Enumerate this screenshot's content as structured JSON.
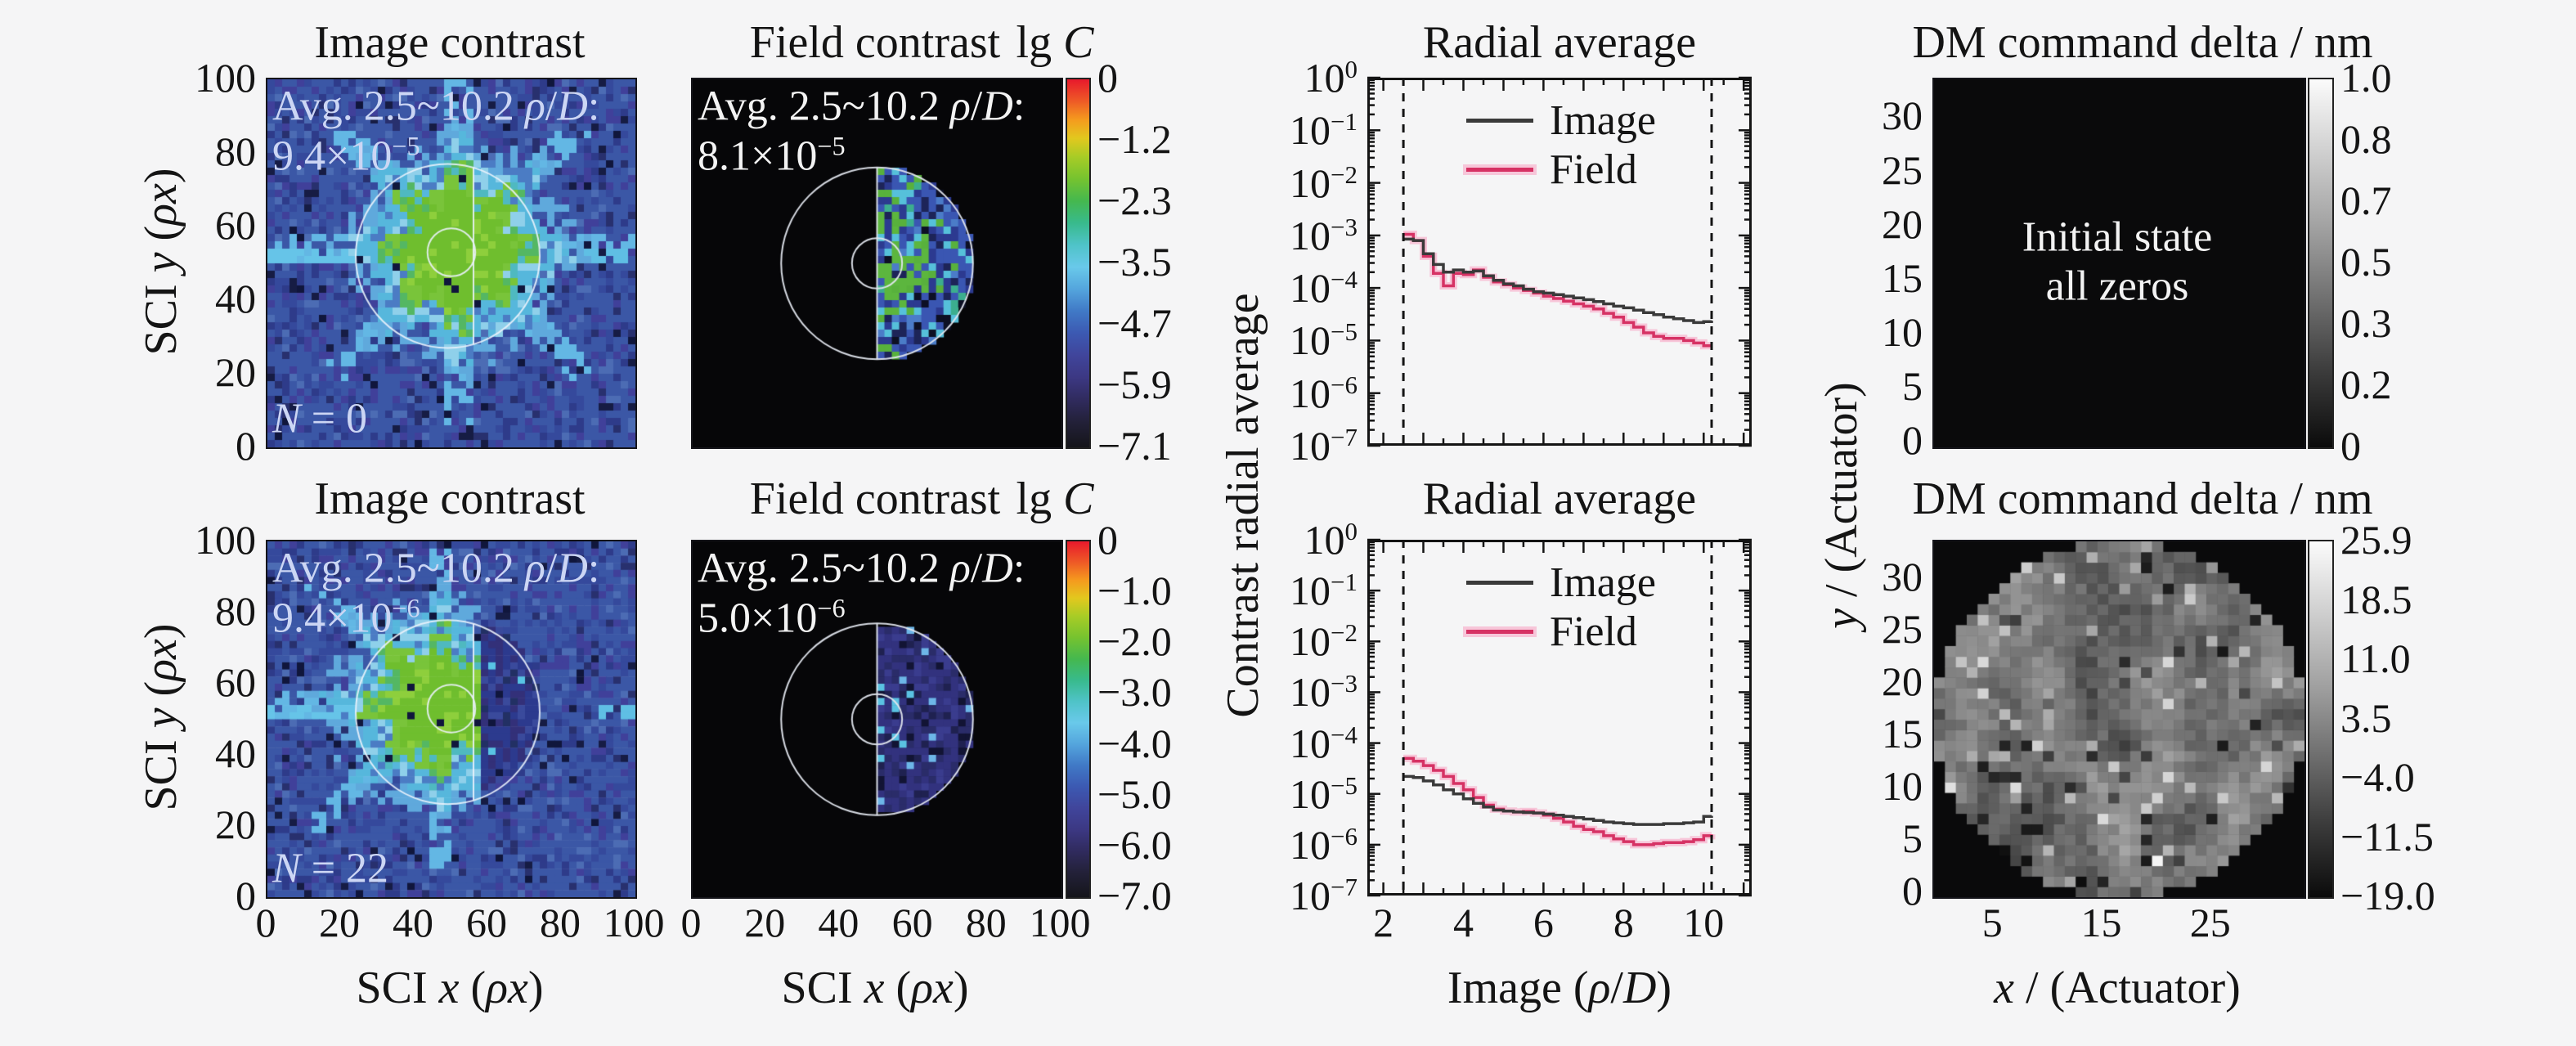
{
  "shared": {
    "contrast_radial_average": "Contrast radial average",
    "y_actuator": [
      {
        "t": "y",
        "i": true
      },
      {
        "t": " / (Actuator)"
      }
    ]
  },
  "colors": {
    "background": "#f5f5f6",
    "image_line": "#3a3a3a",
    "field_line": "#d63264",
    "field_halo": "#f7c6d9",
    "annotation_blue": "#ccd6f4",
    "annotation_white": "#f3f3f3",
    "rainbow_stops": [
      [
        0,
        "#e8192c"
      ],
      [
        0.06,
        "#ee5b26"
      ],
      [
        0.11,
        "#f59b1e"
      ],
      [
        0.16,
        "#e2c81e"
      ],
      [
        0.21,
        "#a8cc26"
      ],
      [
        0.27,
        "#76c32f"
      ],
      [
        0.33,
        "#45b84e"
      ],
      [
        0.39,
        "#38ba8c"
      ],
      [
        0.45,
        "#4fc3c8"
      ],
      [
        0.51,
        "#69c9ea"
      ],
      [
        0.57,
        "#54a5dd"
      ],
      [
        0.63,
        "#4079c6"
      ],
      [
        0.69,
        "#3c59b2"
      ],
      [
        0.75,
        "#40459b"
      ],
      [
        0.81,
        "#3c3883"
      ],
      [
        0.87,
        "#302b5e"
      ],
      [
        0.93,
        "#232139"
      ],
      [
        1,
        "#15151a"
      ]
    ],
    "gray_stops": [
      [
        0,
        "#fbfbfb"
      ],
      [
        0.2,
        "#cfcfcf"
      ],
      [
        0.4,
        "#a2a2a2"
      ],
      [
        0.6,
        "#6f6f6f"
      ],
      [
        0.8,
        "#3a3a3a"
      ],
      [
        1,
        "#0b0b0b"
      ]
    ]
  },
  "panels": {
    "image_contrast_top": {
      "title": "Image contrast",
      "ylabel": [
        {
          "t": "SCI "
        },
        {
          "t": "y",
          "i": true
        },
        {
          "t": " ("
        },
        {
          "t": "ρx",
          "i": true
        },
        {
          "t": ")"
        }
      ],
      "overlay1": [
        {
          "t": "Avg. 2.5~10.2 "
        },
        {
          "t": "ρ",
          "i": true
        },
        {
          "t": "/"
        },
        {
          "t": "D",
          "i": true
        },
        {
          "t": ":"
        }
      ],
      "overlay2": [
        {
          "t": "9.4×10"
        },
        {
          "t": "−5",
          "s": true
        }
      ],
      "n_label": [
        {
          "t": "N",
          "i": true
        },
        {
          "t": " = 0"
        }
      ],
      "y_ticks": [
        "100",
        "80",
        "60",
        "40",
        "20",
        "0"
      ],
      "heatmap": {
        "kind": "image",
        "variant": "full",
        "seed": 42
      }
    },
    "field_contrast_top": {
      "title": "Field contrast",
      "colorbar_label": [
        {
          "t": "lg "
        },
        {
          "t": "C",
          "i": true
        }
      ],
      "overlay1": [
        {
          "t": "Avg. 2.5~10.2 "
        },
        {
          "t": "ρ",
          "i": true
        },
        {
          "t": "/"
        },
        {
          "t": "D",
          "i": true
        },
        {
          "t": ":"
        }
      ],
      "overlay2": [
        {
          "t": "8.1×10"
        },
        {
          "t": "−5",
          "s": true
        }
      ],
      "colorbar_ticks": [
        "0",
        "−1.2",
        "−2.3",
        "−3.5",
        "−4.7",
        "−5.9",
        "−7.1"
      ],
      "heatmap": {
        "kind": "field",
        "variant": "top",
        "seed": 17
      }
    },
    "radial_top": {
      "title": "Radial average",
      "legend": [
        "Image",
        "Field"
      ],
      "y_exponents": [
        "0",
        "−1",
        "−2",
        "−3",
        "−4",
        "−5",
        "−6",
        "−7"
      ]
    },
    "dm_top": {
      "title": "DM command delta / nm",
      "overlay_line1": "Initial state",
      "overlay_line2": "all zeros",
      "y_ticks": [
        "0",
        "5",
        "10",
        "15",
        "20",
        "25",
        "30"
      ],
      "colorbar_ticks": [
        "1.0",
        "0.8",
        "0.7",
        "0.5",
        "0.3",
        "0.2",
        "0"
      ],
      "heatmap": {
        "kind": "dm-zeros",
        "seed": 1
      }
    },
    "image_contrast_bottom": {
      "title": "Image contrast",
      "ylabel": [
        {
          "t": "SCI "
        },
        {
          "t": "y",
          "i": true
        },
        {
          "t": " ("
        },
        {
          "t": "ρx",
          "i": true
        },
        {
          "t": ")"
        }
      ],
      "xlabel": [
        {
          "t": "SCI "
        },
        {
          "t": "x",
          "i": true
        },
        {
          "t": " ("
        },
        {
          "t": "ρx",
          "i": true
        },
        {
          "t": ")"
        }
      ],
      "overlay1": [
        {
          "t": "Avg. 2.5~10.2 "
        },
        {
          "t": "ρ",
          "i": true
        },
        {
          "t": "/"
        },
        {
          "t": "D",
          "i": true
        },
        {
          "t": ":"
        }
      ],
      "overlay2": [
        {
          "t": "9.4×10"
        },
        {
          "t": "−6",
          "s": true
        }
      ],
      "n_label": [
        {
          "t": "N",
          "i": true
        },
        {
          "t": " = 22"
        }
      ],
      "y_ticks": [
        "100",
        "80",
        "60",
        "40",
        "20",
        "0"
      ],
      "x_ticks": [
        "0",
        "20",
        "40",
        "60",
        "80",
        "100"
      ],
      "heatmap": {
        "kind": "image",
        "variant": "half",
        "seed": 7
      }
    },
    "field_contrast_bottom": {
      "title": "Field contrast",
      "colorbar_label": [
        {
          "t": "lg "
        },
        {
          "t": "C",
          "i": true
        }
      ],
      "xlabel": [
        {
          "t": "SCI "
        },
        {
          "t": "x",
          "i": true
        },
        {
          "t": " ("
        },
        {
          "t": "ρx",
          "i": true
        },
        {
          "t": ")"
        }
      ],
      "overlay1": [
        {
          "t": "Avg. 2.5~10.2 "
        },
        {
          "t": "ρ",
          "i": true
        },
        {
          "t": "/"
        },
        {
          "t": "D",
          "i": true
        },
        {
          "t": ":"
        }
      ],
      "overlay2": [
        {
          "t": "5.0×10"
        },
        {
          "t": "−6",
          "s": true
        }
      ],
      "colorbar_ticks": [
        "0",
        "−1.0",
        "−2.0",
        "−3.0",
        "−4.0",
        "−5.0",
        "−6.0",
        "−7.0"
      ],
      "x_ticks": [
        "0",
        "20",
        "40",
        "60",
        "80",
        "100"
      ],
      "heatmap": {
        "kind": "field",
        "variant": "bottom",
        "seed": 23
      }
    },
    "radial_bottom": {
      "title": "Radial average",
      "legend": [
        "Image",
        "Field"
      ],
      "y_exponents": [
        "0",
        "−1",
        "−2",
        "−3",
        "−4",
        "−5",
        "−6",
        "−7"
      ],
      "xlabel": [
        {
          "t": "Image  ("
        },
        {
          "t": "ρ",
          "i": true
        },
        {
          "t": "/"
        },
        {
          "t": "D",
          "i": true
        },
        {
          "t": ")"
        }
      ],
      "x_ticks": [
        "2",
        "4",
        "6",
        "8",
        "10"
      ]
    },
    "dm_bottom": {
      "title": "DM command delta / nm",
      "xlabel": [
        {
          "t": "x",
          "i": true
        },
        {
          "t": " / (Actuator)"
        }
      ],
      "x_ticks": [
        "5",
        "15",
        "25"
      ],
      "y_ticks": [
        "0",
        "5",
        "10",
        "15",
        "20",
        "25",
        "30"
      ],
      "colorbar_ticks": [
        "25.9",
        "18.5",
        "11.0",
        "3.5",
        "−4.0",
        "−11.5",
        "−19.0"
      ],
      "heatmap": {
        "kind": "dm-speckle",
        "seed": 5
      }
    }
  },
  "chart_data": [
    {
      "type": "line",
      "style": "step",
      "title": "Radial average",
      "xlabel": "",
      "ylabel": "Contrast radial average",
      "legend": [
        "Image",
        "Field"
      ],
      "legend_position": "upper center",
      "grid": false,
      "xlim": [
        1.6,
        11.2
      ],
      "ylim": [
        1e-07,
        1
      ],
      "yscale": "log",
      "dashed_x": [
        2.5,
        10.2
      ],
      "x": [
        2.5,
        2.75,
        3.0,
        3.25,
        3.5,
        3.75,
        4.0,
        4.25,
        4.5,
        4.75,
        5.0,
        5.25,
        5.5,
        5.75,
        6.0,
        6.25,
        6.5,
        6.75,
        7.0,
        7.25,
        7.5,
        7.75,
        8.0,
        8.25,
        8.5,
        8.75,
        9.0,
        9.25,
        9.5,
        9.75,
        10.0,
        10.2
      ],
      "series": [
        {
          "name": "Image",
          "color": "#3a3a3a",
          "values": [
            0.00085,
            0.0008,
            0.00045,
            0.00028,
            0.0002,
            0.00022,
            0.0002,
            0.00021,
            0.00017,
            0.00014,
            0.00012,
            0.00011,
            9.5e-05,
            8.5e-05,
            8e-05,
            7.5e-05,
            7e-05,
            6.5e-05,
            6e-05,
            5.5e-05,
            5e-05,
            4.5e-05,
            4.2e-05,
            3.8e-05,
            3.4e-05,
            3.1e-05,
            2.8e-05,
            2.6e-05,
            2.4e-05,
            2.2e-05,
            2.3e-05,
            2.4e-05
          ]
        },
        {
          "name": "Field",
          "color": "#d63264",
          "halo": "#f7c6d9",
          "values": [
            0.00105,
            0.0008,
            0.0004,
            0.00019,
            0.00011,
            0.00019,
            0.00018,
            0.00022,
            0.00016,
            0.00013,
            0.000115,
            0.0001,
            9e-05,
            8e-05,
            7e-05,
            6.3e-05,
            5.6e-05,
            5e-05,
            4.5e-05,
            4e-05,
            3.3e-05,
            2.8e-05,
            2.2e-05,
            1.8e-05,
            1.4e-05,
            1.2e-05,
            1.1e-05,
            1.1e-05,
            1e-05,
            9e-06,
            8e-06,
            8e-06
          ]
        }
      ]
    },
    {
      "type": "line",
      "style": "step",
      "title": "Radial average",
      "xlabel": "Image  (ρ/D)",
      "ylabel": "Contrast radial average",
      "legend": [
        "Image",
        "Field"
      ],
      "legend_position": "upper center",
      "grid": false,
      "xlim": [
        1.6,
        11.2
      ],
      "ylim": [
        1e-07,
        1
      ],
      "yscale": "log",
      "dashed_x": [
        2.5,
        10.2
      ],
      "x": [
        2.5,
        2.75,
        3.0,
        3.25,
        3.5,
        3.75,
        4.0,
        4.25,
        4.5,
        4.75,
        5.0,
        5.25,
        5.5,
        5.75,
        6.0,
        6.25,
        6.5,
        6.75,
        7.0,
        7.25,
        7.5,
        7.75,
        8.0,
        8.25,
        8.5,
        8.75,
        9.0,
        9.25,
        9.5,
        9.75,
        10.0,
        10.2
      ],
      "series": [
        {
          "name": "Image",
          "color": "#3a3a3a",
          "values": [
            2.2e-05,
            2.1e-05,
            1.8e-05,
            1.5e-05,
            1.2e-05,
            1e-05,
            8e-06,
            6.5e-06,
            5.5e-06,
            4.8e-06,
            4.6e-06,
            4.4e-06,
            4.3e-06,
            4.2e-06,
            4e-06,
            3.8e-06,
            3.6e-06,
            3.4e-06,
            3.2e-06,
            3e-06,
            2.8e-06,
            2.7e-06,
            2.6e-06,
            2.5e-06,
            2.5e-06,
            2.5e-06,
            2.6e-06,
            2.6e-06,
            2.7e-06,
            2.8e-06,
            3.6e-06,
            3.7e-06
          ]
        },
        {
          "name": "Field",
          "color": "#d63264",
          "halo": "#f7c6d9",
          "values": [
            5e-05,
            4.4e-05,
            3.6e-05,
            2.9e-05,
            2.2e-05,
            1.6e-05,
            1.2e-05,
            8.5e-06,
            6e-06,
            5e-06,
            4.6e-06,
            4.4e-06,
            4.5e-06,
            4.2e-06,
            3.8e-06,
            3.3e-06,
            2.8e-06,
            2.3e-06,
            2e-06,
            1.8e-06,
            1.5e-06,
            1.3e-06,
            1.15e-06,
            1e-06,
            1e-06,
            1.05e-06,
            1.1e-06,
            1.1e-06,
            1.15e-06,
            1.25e-06,
            1.5e-06,
            1.6e-06
          ]
        }
      ]
    }
  ]
}
